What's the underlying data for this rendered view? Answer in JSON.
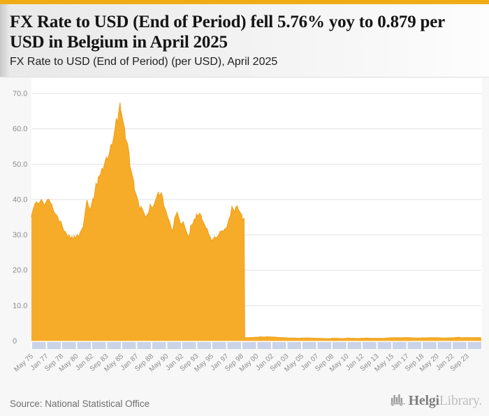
{
  "accent_color": "#EFAC15",
  "header": {
    "title": "FX Rate to USD (End of Period) fell 5.76% yoy to 0.879 per USD in Belgium in April 2025",
    "subtitle": "FX Rate to USD (End of Period) (per USD), April 2025"
  },
  "footer": {
    "source": "Source: National Statistical Office",
    "brand_name": "Helgi",
    "brand_suffix": "Library."
  },
  "chart_data": {
    "type": "area",
    "title": "FX Rate to USD (End of Period) (per USD), April 2025",
    "country": "Belgium",
    "latest_value": 0.879,
    "latest_period": "April 2025",
    "yoy_change_pct": -5.76,
    "x_start": "May 1975",
    "x_end": "Apr 2025",
    "x_tick_interval_months": 20,
    "ylim": [
      0,
      70
    ],
    "grid": true,
    "legend": "none",
    "area_color": "#F7AC29",
    "area_edge_color": "#EEA31D",
    "tick_band_color": "#CBD3E9",
    "grid_color": "#E2E2E2",
    "axis_text_color": "#8C8C8C",
    "y_ticks": {
      "values": [
        0,
        10,
        20,
        30,
        40,
        50,
        60,
        70
      ],
      "labels": [
        "0",
        "10.0",
        "20.0",
        "30.0",
        "40.0",
        "50.0",
        "60.0",
        "70.0"
      ]
    },
    "x_tick_labels": [
      "May 75",
      "Jan 77",
      "Sep 78",
      "May 80",
      "Jan 82",
      "Sep 83",
      "May 85",
      "Jan 87",
      "Sep 88",
      "May 90",
      "Jan 92",
      "Sep 93",
      "May 95",
      "Jan 97",
      "Sep 98",
      "May 00",
      "Jan 02",
      "Sep 03",
      "May 05",
      "Jan 07",
      "Sep 08",
      "May 10",
      "Jan 12",
      "Sep 13",
      "May 15",
      "Jan 17",
      "Sep 18",
      "May 20",
      "Jan 22",
      "Sep 23"
    ],
    "points": [
      [
        1975.33,
        35.0
      ],
      [
        1975.42,
        36.2
      ],
      [
        1975.58,
        37.6
      ],
      [
        1975.75,
        38.9
      ],
      [
        1975.92,
        39.3
      ],
      [
        1976.08,
        38.8
      ],
      [
        1976.25,
        39.1
      ],
      [
        1976.42,
        40.0
      ],
      [
        1976.58,
        39.4
      ],
      [
        1976.75,
        38.3
      ],
      [
        1976.92,
        39.0
      ],
      [
        1977.08,
        39.9
      ],
      [
        1977.25,
        40.1
      ],
      [
        1977.42,
        39.2
      ],
      [
        1977.58,
        38.6
      ],
      [
        1977.75,
        37.0
      ],
      [
        1977.92,
        36.1
      ],
      [
        1978.08,
        35.7
      ],
      [
        1978.25,
        35.1
      ],
      [
        1978.42,
        33.5
      ],
      [
        1978.58,
        33.9
      ],
      [
        1978.75,
        32.4
      ],
      [
        1978.92,
        31.2
      ],
      [
        1979.08,
        30.9
      ],
      [
        1979.25,
        30.1
      ],
      [
        1979.42,
        29.1
      ],
      [
        1979.5,
        30.0
      ],
      [
        1979.67,
        28.9
      ],
      [
        1979.83,
        29.6
      ],
      [
        1979.96,
        28.5
      ],
      [
        1980.08,
        29.7
      ],
      [
        1980.25,
        29.0
      ],
      [
        1980.42,
        30.1
      ],
      [
        1980.58,
        29.3
      ],
      [
        1980.75,
        30.7
      ],
      [
        1980.92,
        31.5
      ],
      [
        1981.08,
        32.4
      ],
      [
        1981.25,
        35.2
      ],
      [
        1981.42,
        38.6
      ],
      [
        1981.54,
        39.8
      ],
      [
        1981.67,
        38.1
      ],
      [
        1981.83,
        37.0
      ],
      [
        1981.96,
        38.5
      ],
      [
        1982.13,
        40.3
      ],
      [
        1982.29,
        39.6
      ],
      [
        1982.46,
        44.6
      ],
      [
        1982.63,
        43.8
      ],
      [
        1982.79,
        46.3
      ],
      [
        1982.96,
        47.1
      ],
      [
        1983.13,
        48.9
      ],
      [
        1983.29,
        48.0
      ],
      [
        1983.46,
        50.6
      ],
      [
        1983.63,
        52.1
      ],
      [
        1983.79,
        51.0
      ],
      [
        1983.96,
        53.2
      ],
      [
        1984.13,
        55.7
      ],
      [
        1984.29,
        54.6
      ],
      [
        1984.46,
        58.2
      ],
      [
        1984.63,
        61.0
      ],
      [
        1984.75,
        63.0
      ],
      [
        1984.88,
        61.6
      ],
      [
        1985.04,
        64.3
      ],
      [
        1985.13,
        67.4
      ],
      [
        1985.21,
        64.0
      ],
      [
        1985.29,
        65.2
      ],
      [
        1985.46,
        62.0
      ],
      [
        1985.63,
        60.1
      ],
      [
        1985.79,
        57.3
      ],
      [
        1985.96,
        55.7
      ],
      [
        1986.13,
        53.0
      ],
      [
        1986.29,
        49.6
      ],
      [
        1986.46,
        47.0
      ],
      [
        1986.63,
        45.3
      ],
      [
        1986.79,
        42.8
      ],
      [
        1986.96,
        41.0
      ],
      [
        1987.13,
        39.6
      ],
      [
        1987.29,
        38.2
      ],
      [
        1987.42,
        37.1
      ],
      [
        1987.54,
        38.0
      ],
      [
        1987.71,
        36.6
      ],
      [
        1987.88,
        35.4
      ],
      [
        1988.04,
        35.1
      ],
      [
        1988.21,
        35.8
      ],
      [
        1988.38,
        36.9
      ],
      [
        1988.54,
        38.6
      ],
      [
        1988.71,
        37.5
      ],
      [
        1988.88,
        38.3
      ],
      [
        1989.04,
        38.9
      ],
      [
        1989.21,
        40.8
      ],
      [
        1989.42,
        42.2
      ],
      [
        1989.54,
        40.9
      ],
      [
        1989.71,
        41.9
      ],
      [
        1989.88,
        40.3
      ],
      [
        1990.04,
        38.4
      ],
      [
        1990.21,
        36.8
      ],
      [
        1990.42,
        35.2
      ],
      [
        1990.63,
        33.6
      ],
      [
        1990.83,
        31.9
      ],
      [
        1990.96,
        30.9
      ],
      [
        1991.08,
        32.2
      ],
      [
        1991.29,
        34.9
      ],
      [
        1991.5,
        36.4
      ],
      [
        1991.67,
        35.0
      ],
      [
        1991.83,
        33.4
      ],
      [
        1991.96,
        33.0
      ],
      [
        1992.13,
        33.7
      ],
      [
        1992.29,
        33.0
      ],
      [
        1992.46,
        31.0
      ],
      [
        1992.63,
        30.0
      ],
      [
        1992.71,
        29.2
      ],
      [
        1992.88,
        30.6
      ],
      [
        1993.04,
        32.5
      ],
      [
        1993.21,
        33.2
      ],
      [
        1993.38,
        34.5
      ],
      [
        1993.5,
        34.0
      ],
      [
        1993.63,
        35.9
      ],
      [
        1993.79,
        35.2
      ],
      [
        1993.96,
        36.1
      ],
      [
        1994.13,
        35.5
      ],
      [
        1994.29,
        34.3
      ],
      [
        1994.46,
        33.1
      ],
      [
        1994.63,
        32.0
      ],
      [
        1994.83,
        31.7
      ],
      [
        1995.04,
        30.2
      ],
      [
        1995.21,
        28.9
      ],
      [
        1995.29,
        28.2
      ],
      [
        1995.46,
        28.8
      ],
      [
        1995.63,
        29.5
      ],
      [
        1995.79,
        29.0
      ],
      [
        1995.96,
        29.5
      ],
      [
        1996.13,
        30.3
      ],
      [
        1996.29,
        30.9
      ],
      [
        1996.46,
        31.2
      ],
      [
        1996.63,
        31.0
      ],
      [
        1996.79,
        31.6
      ],
      [
        1996.96,
        32.0
      ],
      [
        1997.13,
        33.6
      ],
      [
        1997.29,
        34.5
      ],
      [
        1997.42,
        35.4
      ],
      [
        1997.58,
        38.0
      ],
      [
        1997.71,
        37.1
      ],
      [
        1997.88,
        36.5
      ],
      [
        1998.04,
        37.8
      ],
      [
        1998.13,
        38.2
      ],
      [
        1998.29,
        37.3
      ],
      [
        1998.46,
        36.3
      ],
      [
        1998.63,
        35.7
      ],
      [
        1998.79,
        34.1
      ],
      [
        1998.92,
        34.7
      ],
      [
        1999.04,
        0.86
      ],
      [
        1999.29,
        0.93
      ],
      [
        1999.58,
        0.95
      ],
      [
        1999.88,
        0.99
      ],
      [
        2000.17,
        1.04
      ],
      [
        2000.46,
        1.05
      ],
      [
        2000.79,
        1.19
      ],
      [
        2000.96,
        1.07
      ],
      [
        2001.21,
        1.1
      ],
      [
        2001.46,
        1.18
      ],
      [
        2001.75,
        1.1
      ],
      [
        2001.96,
        1.13
      ],
      [
        2002.29,
        1.08
      ],
      [
        2002.58,
        1.02
      ],
      [
        2002.88,
        0.96
      ],
      [
        2003.17,
        0.92
      ],
      [
        2003.46,
        0.87
      ],
      [
        2003.79,
        0.86
      ],
      [
        2003.96,
        0.79
      ],
      [
        2004.29,
        0.83
      ],
      [
        2004.58,
        0.82
      ],
      [
        2004.96,
        0.73
      ],
      [
        2005.29,
        0.79
      ],
      [
        2005.58,
        0.82
      ],
      [
        2005.88,
        0.85
      ],
      [
        2006.17,
        0.83
      ],
      [
        2006.46,
        0.78
      ],
      [
        2006.88,
        0.76
      ],
      [
        2007.21,
        0.75
      ],
      [
        2007.5,
        0.73
      ],
      [
        2007.79,
        0.69
      ],
      [
        2007.96,
        0.68
      ],
      [
        2008.29,
        0.63
      ],
      [
        2008.58,
        0.69
      ],
      [
        2008.83,
        0.79
      ],
      [
        2009.04,
        0.75
      ],
      [
        2009.29,
        0.76
      ],
      [
        2009.58,
        0.7
      ],
      [
        2009.88,
        0.67
      ],
      [
        2010.13,
        0.72
      ],
      [
        2010.46,
        0.82
      ],
      [
        2010.71,
        0.73
      ],
      [
        2010.96,
        0.75
      ],
      [
        2011.21,
        0.71
      ],
      [
        2011.42,
        0.69
      ],
      [
        2011.71,
        0.74
      ],
      [
        2011.96,
        0.77
      ],
      [
        2012.21,
        0.75
      ],
      [
        2012.54,
        0.81
      ],
      [
        2012.79,
        0.77
      ],
      [
        2012.96,
        0.76
      ],
      [
        2013.29,
        0.73
      ],
      [
        2013.58,
        0.76
      ],
      [
        2013.88,
        0.73
      ],
      [
        2014.21,
        0.72
      ],
      [
        2014.5,
        0.73
      ],
      [
        2014.79,
        0.8
      ],
      [
        2014.96,
        0.83
      ],
      [
        2015.21,
        0.93
      ],
      [
        2015.5,
        0.9
      ],
      [
        2015.79,
        0.89
      ],
      [
        2015.96,
        0.92
      ],
      [
        2016.21,
        0.88
      ],
      [
        2016.5,
        0.9
      ],
      [
        2016.79,
        0.91
      ],
      [
        2016.96,
        0.95
      ],
      [
        2017.21,
        0.92
      ],
      [
        2017.5,
        0.88
      ],
      [
        2017.79,
        0.84
      ],
      [
        2018.08,
        0.8
      ],
      [
        2018.38,
        0.83
      ],
      [
        2018.67,
        0.86
      ],
      [
        2018.96,
        0.87
      ],
      [
        2019.29,
        0.89
      ],
      [
        2019.58,
        0.9
      ],
      [
        2019.88,
        0.89
      ],
      [
        2020.17,
        0.91
      ],
      [
        2020.46,
        0.89
      ],
      [
        2020.79,
        0.84
      ],
      [
        2020.96,
        0.815
      ],
      [
        2021.21,
        0.83
      ],
      [
        2021.5,
        0.84
      ],
      [
        2021.79,
        0.86
      ],
      [
        2021.96,
        0.885
      ],
      [
        2022.21,
        0.9
      ],
      [
        2022.5,
        0.96
      ],
      [
        2022.71,
        1.02
      ],
      [
        2022.88,
        0.97
      ],
      [
        2023.04,
        0.92
      ],
      [
        2023.29,
        0.91
      ],
      [
        2023.58,
        0.95
      ],
      [
        2023.88,
        0.92
      ],
      [
        2024.21,
        0.93
      ],
      [
        2024.5,
        0.93
      ],
      [
        2024.79,
        0.9
      ],
      [
        2024.96,
        0.965
      ],
      [
        2025.08,
        0.92
      ],
      [
        2025.25,
        0.879
      ]
    ]
  }
}
